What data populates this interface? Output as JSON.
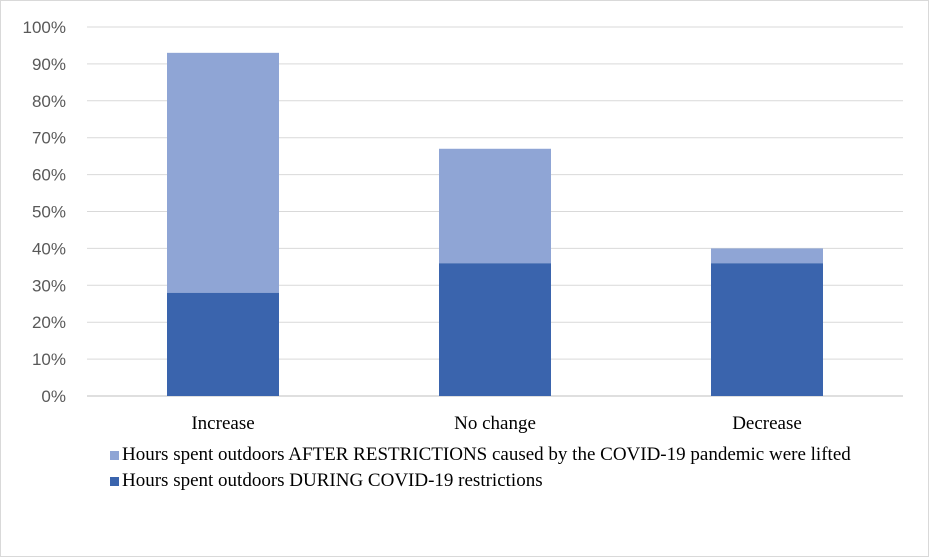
{
  "chart_data": {
    "type": "bar",
    "stacked": true,
    "categories": [
      "Increase",
      "No change",
      "Decrease"
    ],
    "series": [
      {
        "name": "Hours spent outdoors DURING COVID-19 restrictions",
        "color": "#3a64ad",
        "values": [
          28,
          36,
          36
        ]
      },
      {
        "name": "Hours spent outdoors AFTER RESTRICTIONS caused by the COVID-19 pandemic were lifted",
        "color": "#8fa5d5",
        "values": [
          65,
          31,
          4
        ]
      }
    ],
    "ylim": [
      0,
      100
    ],
    "yticks": [
      "0%",
      "10%",
      "20%",
      "30%",
      "40%",
      "50%",
      "60%",
      "70%",
      "80%",
      "90%",
      "100%"
    ],
    "grid": true,
    "legend_position": "bottom-left"
  }
}
